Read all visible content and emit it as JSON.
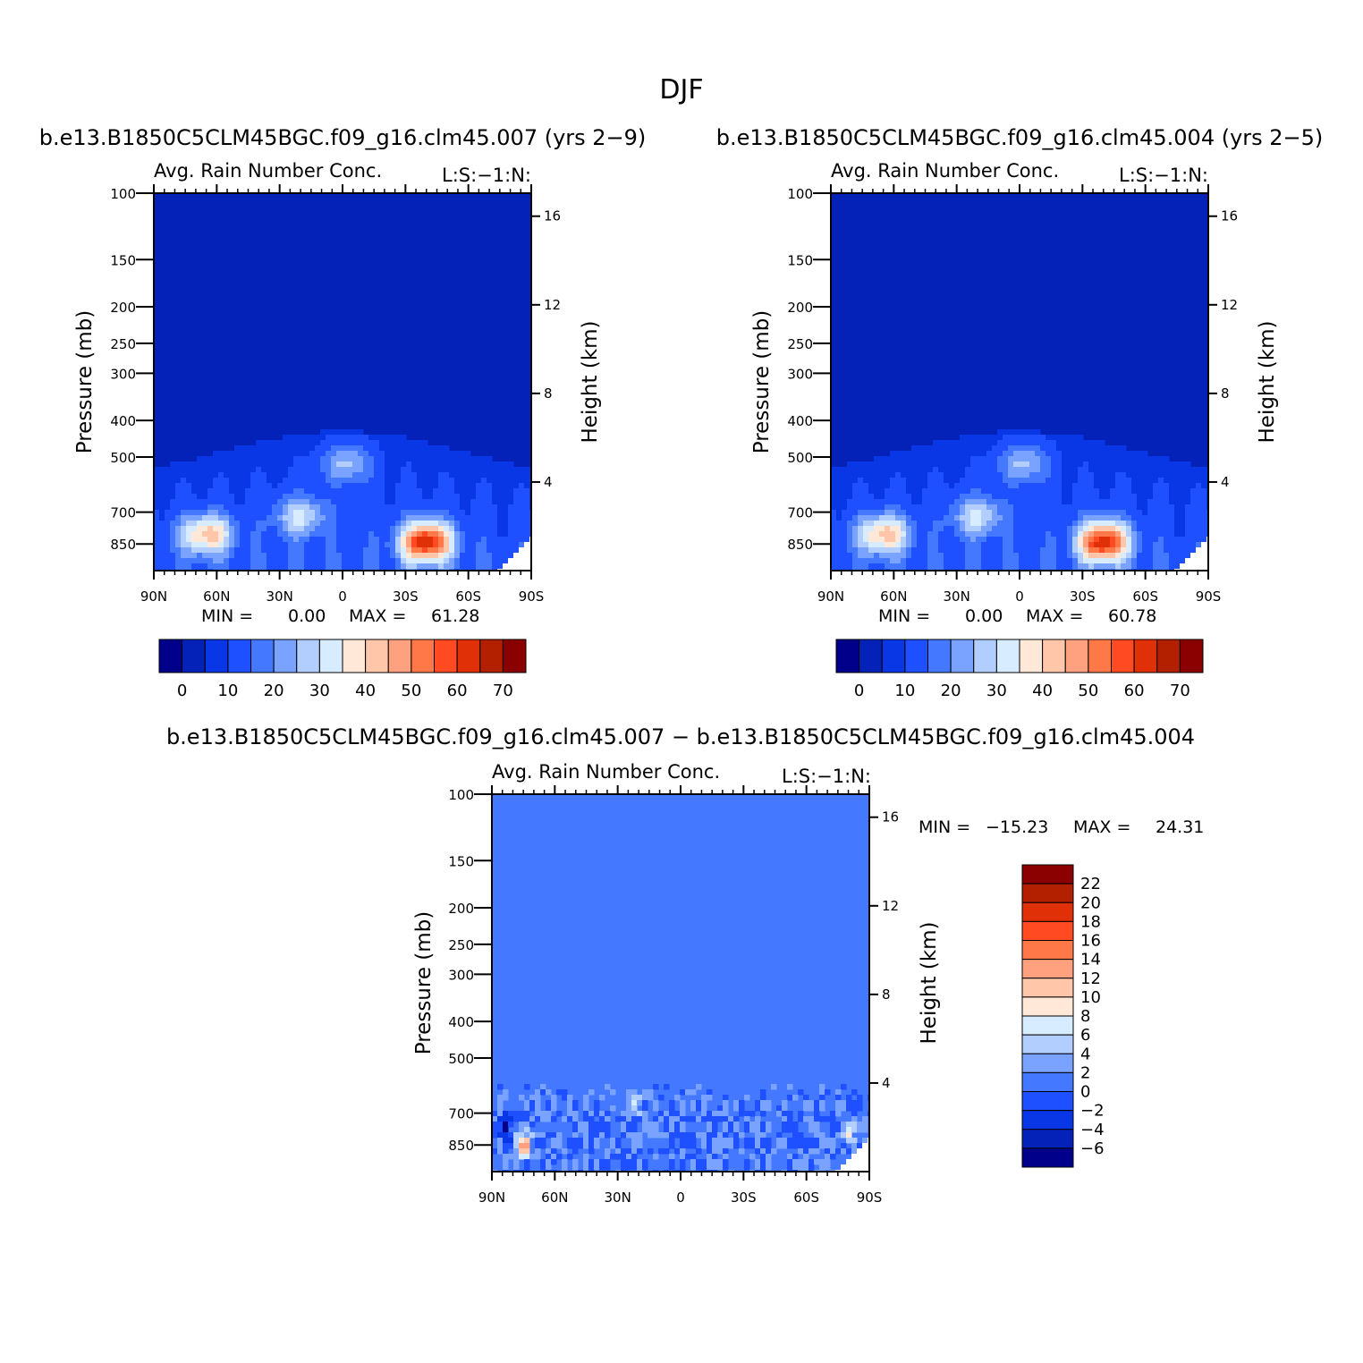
{
  "figure": {
    "title": "DJF"
  },
  "chart_data": [
    {
      "type": "heatmap",
      "title": "b.e13.B1850C5CLM45BGC.f09_g16.clm45.007 (yrs 2−9)",
      "subtitle_left": "Avg. Rain Number Conc.",
      "subtitle_right": "L:S:−1:N:",
      "xlabel": "",
      "ylabel": "Pressure (mb)",
      "ylabel_right": "Height (km)",
      "x_tick_labels": [
        "90N",
        "60N",
        "30N",
        "0",
        "30S",
        "60S",
        "90S"
      ],
      "x_ticks": [
        90,
        60,
        30,
        0,
        -30,
        -60,
        -90
      ],
      "y_tick_labels": [
        "100",
        "150",
        "200",
        "250",
        "300",
        "400",
        "500",
        "700",
        "850"
      ],
      "y_ticks": [
        100,
        150,
        200,
        250,
        300,
        400,
        500,
        700,
        850
      ],
      "y_scale": "log",
      "ylim": [
        100,
        1000
      ],
      "height_tick_labels": [
        "16",
        "12",
        "8",
        "4"
      ],
      "height_ticks": [
        16,
        12,
        8,
        4
      ],
      "min_label": "MIN =",
      "min_value": "0.00",
      "max_label": "MAX =",
      "max_value": "61.28",
      "colorbar_labels": [
        "0",
        "10",
        "20",
        "30",
        "40",
        "50",
        "60",
        "70"
      ],
      "colorbar_levels": [
        0,
        5,
        10,
        15,
        20,
        25,
        30,
        35,
        40,
        45,
        50,
        55,
        60,
        65,
        70
      ],
      "colorbar_colors": [
        "#00008b",
        "#0522b8",
        "#0a37e6",
        "#1e50ff",
        "#4478ff",
        "#7aa2ff",
        "#b2ceff",
        "#d8ecff",
        "#ffe8d8",
        "#ffc6aa",
        "#ffa07f",
        "#ff7848",
        "#ff4a22",
        "#e03008",
        "#b32000",
        "#8b0000"
      ],
      "field_peaks": [
        {
          "lat": -40,
          "p": 840,
          "value": 61.28
        },
        {
          "lat": 65,
          "p": 800,
          "value": 40
        },
        {
          "lat": 20,
          "p": 720,
          "value": 28
        },
        {
          "lat": -2,
          "p": 520,
          "value": 25
        }
      ]
    },
    {
      "type": "heatmap",
      "title": "b.e13.B1850C5CLM45BGC.f09_g16.clm45.004 (yrs 2−5)",
      "subtitle_left": "Avg. Rain Number Conc.",
      "subtitle_right": "L:S:−1:N:",
      "xlabel": "",
      "ylabel": "Pressure (mb)",
      "ylabel_right": "Height (km)",
      "x_tick_labels": [
        "90N",
        "60N",
        "30N",
        "0",
        "30S",
        "60S",
        "90S"
      ],
      "x_ticks": [
        90,
        60,
        30,
        0,
        -30,
        -60,
        -90
      ],
      "y_tick_labels": [
        "100",
        "150",
        "200",
        "250",
        "300",
        "400",
        "500",
        "700",
        "850"
      ],
      "y_ticks": [
        100,
        150,
        200,
        250,
        300,
        400,
        500,
        700,
        850
      ],
      "y_scale": "log",
      "ylim": [
        100,
        1000
      ],
      "height_tick_labels": [
        "16",
        "12",
        "8",
        "4"
      ],
      "height_ticks": [
        16,
        12,
        8,
        4
      ],
      "min_label": "MIN =",
      "min_value": "0.00",
      "max_label": "MAX =",
      "max_value": "60.78",
      "colorbar_labels": [
        "0",
        "10",
        "20",
        "30",
        "40",
        "50",
        "60",
        "70"
      ],
      "colorbar_levels": [
        0,
        5,
        10,
        15,
        20,
        25,
        30,
        35,
        40,
        45,
        50,
        55,
        60,
        65,
        70
      ],
      "colorbar_colors": [
        "#00008b",
        "#0522b8",
        "#0a37e6",
        "#1e50ff",
        "#4478ff",
        "#7aa2ff",
        "#b2ceff",
        "#d8ecff",
        "#ffe8d8",
        "#ffc6aa",
        "#ffa07f",
        "#ff7848",
        "#ff4a22",
        "#e03008",
        "#b32000",
        "#8b0000"
      ],
      "field_peaks": [
        {
          "lat": -40,
          "p": 840,
          "value": 60.78
        },
        {
          "lat": 65,
          "p": 800,
          "value": 40
        },
        {
          "lat": 20,
          "p": 720,
          "value": 28
        },
        {
          "lat": -2,
          "p": 520,
          "value": 25
        }
      ]
    },
    {
      "type": "heatmap",
      "title": "b.e13.B1850C5CLM45BGC.f09_g16.clm45.007 − b.e13.B1850C5CLM45BGC.f09_g16.clm45.004",
      "subtitle_left": "Avg. Rain Number Conc.",
      "subtitle_right": "L:S:−1:N:",
      "xlabel": "",
      "ylabel": "Pressure (mb)",
      "ylabel_right": "Height (km)",
      "x_tick_labels": [
        "90N",
        "60N",
        "30N",
        "0",
        "30S",
        "60S",
        "90S"
      ],
      "x_ticks": [
        90,
        60,
        30,
        0,
        -30,
        -60,
        -90
      ],
      "y_tick_labels": [
        "100",
        "150",
        "200",
        "250",
        "300",
        "400",
        "500",
        "700",
        "850"
      ],
      "y_ticks": [
        100,
        150,
        200,
        250,
        300,
        400,
        500,
        700,
        850
      ],
      "y_scale": "log",
      "ylim": [
        100,
        1000
      ],
      "height_tick_labels": [
        "16",
        "12",
        "8",
        "4"
      ],
      "height_ticks": [
        16,
        12,
        8,
        4
      ],
      "min_label": "MIN =",
      "min_value": "−15.23",
      "max_label": "MAX =",
      "max_value": "24.31",
      "colorbar_labels": [
        "22",
        "20",
        "18",
        "16",
        "14",
        "12",
        "10",
        "8",
        "6",
        "4",
        "2",
        "0",
        "−2",
        "−4",
        "−6"
      ],
      "colorbar_levels": [
        22,
        20,
        18,
        16,
        14,
        12,
        10,
        8,
        6,
        4,
        2,
        0,
        -2,
        -4,
        -6
      ],
      "colorbar_colors": [
        "#8b0000",
        "#b32000",
        "#e03008",
        "#ff4a22",
        "#ff7848",
        "#ffa07f",
        "#ffc6aa",
        "#ffe8d8",
        "#d8ecff",
        "#b2ceff",
        "#7aa2ff",
        "#4478ff",
        "#1e50ff",
        "#0a37e6",
        "#0522b8",
        "#00008b"
      ],
      "field_peaks": [
        {
          "lat": 75,
          "p": 850,
          "value": 14
        },
        {
          "lat": 22,
          "p": 650,
          "value": 6
        },
        {
          "lat": -80,
          "p": 780,
          "value": 8
        },
        {
          "lat": 84,
          "p": 760,
          "value": -6
        }
      ]
    }
  ]
}
